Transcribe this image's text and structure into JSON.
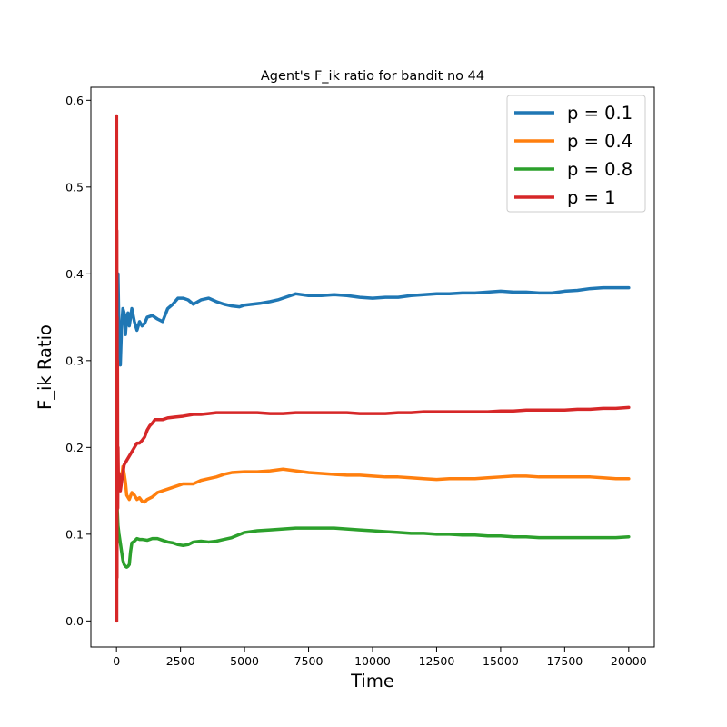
{
  "chart_data": {
    "type": "line",
    "title": "Agent's F_ik ratio for bandit no 44",
    "xlabel": "Time",
    "ylabel": "F_ik Ratio",
    "xlim": [
      -1000,
      21000
    ],
    "ylim": [
      -0.03,
      0.615
    ],
    "xticks": [
      0,
      2500,
      5000,
      7500,
      10000,
      12500,
      15000,
      17500,
      20000
    ],
    "xtick_labels": [
      "0",
      "2500",
      "5000",
      "7500",
      "10000",
      "12500",
      "15000",
      "17500",
      "20000"
    ],
    "yticks": [
      0.0,
      0.1,
      0.2,
      0.3,
      0.4,
      0.5,
      0.6
    ],
    "ytick_labels": [
      "0.0",
      "0.1",
      "0.2",
      "0.3",
      "0.4",
      "0.5",
      "0.6"
    ],
    "grid": false,
    "legend_position": "top-right",
    "series": [
      {
        "name": "p = 0.1",
        "color": "#1f77b4",
        "x": [
          0,
          30,
          60,
          100,
          150,
          200,
          250,
          300,
          350,
          400,
          450,
          500,
          600,
          700,
          800,
          900,
          1000,
          1100,
          1200,
          1400,
          1600,
          1800,
          2000,
          2200,
          2400,
          2600,
          2800,
          3000,
          3300,
          3600,
          3900,
          4200,
          4500,
          4800,
          5000,
          5300,
          5600,
          6000,
          6300,
          6600,
          7000,
          7500,
          8000,
          8500,
          9000,
          9500,
          10000,
          10500,
          11000,
          11500,
          12000,
          12500,
          13000,
          13500,
          14000,
          14500,
          15000,
          15500,
          16000,
          16500,
          17000,
          17500,
          18000,
          18500,
          19000,
          19500,
          20000
        ],
        "y": [
          0.35,
          0.39,
          0.4,
          0.33,
          0.295,
          0.34,
          0.36,
          0.355,
          0.33,
          0.35,
          0.355,
          0.34,
          0.36,
          0.345,
          0.335,
          0.345,
          0.34,
          0.343,
          0.35,
          0.352,
          0.348,
          0.345,
          0.36,
          0.365,
          0.372,
          0.372,
          0.37,
          0.365,
          0.37,
          0.372,
          0.368,
          0.365,
          0.363,
          0.362,
          0.364,
          0.365,
          0.366,
          0.368,
          0.37,
          0.373,
          0.377,
          0.375,
          0.375,
          0.376,
          0.375,
          0.373,
          0.372,
          0.373,
          0.373,
          0.375,
          0.376,
          0.377,
          0.377,
          0.378,
          0.378,
          0.379,
          0.38,
          0.379,
          0.379,
          0.378,
          0.378,
          0.38,
          0.381,
          0.383,
          0.384,
          0.384,
          0.384
        ]
      },
      {
        "name": "p = 0.4",
        "color": "#ff7f0e",
        "x": [
          0,
          30,
          60,
          100,
          150,
          200,
          250,
          300,
          350,
          400,
          500,
          600,
          700,
          800,
          900,
          1000,
          1100,
          1200,
          1400,
          1600,
          1800,
          2000,
          2300,
          2600,
          3000,
          3300,
          3600,
          3900,
          4200,
          4500,
          5000,
          5500,
          6000,
          6500,
          7000,
          7500,
          8000,
          8500,
          9000,
          9500,
          10000,
          10500,
          11000,
          11500,
          12000,
          12500,
          13000,
          13500,
          14000,
          14500,
          15000,
          15500,
          16000,
          16500,
          17000,
          17500,
          18000,
          18500,
          19000,
          19500,
          20000
        ],
        "y": [
          0.1,
          0.14,
          0.16,
          0.17,
          0.155,
          0.165,
          0.178,
          0.17,
          0.16,
          0.145,
          0.14,
          0.148,
          0.145,
          0.14,
          0.142,
          0.138,
          0.137,
          0.14,
          0.143,
          0.148,
          0.15,
          0.152,
          0.155,
          0.158,
          0.158,
          0.162,
          0.164,
          0.166,
          0.169,
          0.171,
          0.172,
          0.172,
          0.173,
          0.175,
          0.173,
          0.171,
          0.17,
          0.169,
          0.168,
          0.168,
          0.167,
          0.166,
          0.166,
          0.165,
          0.164,
          0.163,
          0.164,
          0.164,
          0.164,
          0.165,
          0.166,
          0.167,
          0.167,
          0.166,
          0.166,
          0.166,
          0.166,
          0.166,
          0.165,
          0.164,
          0.164
        ]
      },
      {
        "name": "p = 0.8",
        "color": "#2ca02c",
        "x": [
          0,
          30,
          60,
          100,
          150,
          200,
          250,
          300,
          350,
          400,
          450,
          500,
          550,
          600,
          700,
          800,
          900,
          1000,
          1200,
          1400,
          1600,
          1800,
          2000,
          2200,
          2400,
          2600,
          2800,
          3000,
          3300,
          3600,
          3900,
          4200,
          4500,
          5000,
          5500,
          6000,
          6500,
          7000,
          7500,
          8000,
          8500,
          9000,
          9500,
          10000,
          10500,
          11000,
          11500,
          12000,
          12500,
          13000,
          13500,
          14000,
          14500,
          15000,
          15500,
          16000,
          16500,
          17000,
          17500,
          18000,
          18500,
          19000,
          19500,
          20000
        ],
        "y": [
          0.07,
          0.13,
          0.11,
          0.1,
          0.09,
          0.08,
          0.07,
          0.065,
          0.063,
          0.062,
          0.063,
          0.065,
          0.08,
          0.09,
          0.092,
          0.095,
          0.094,
          0.094,
          0.093,
          0.095,
          0.095,
          0.093,
          0.091,
          0.09,
          0.088,
          0.087,
          0.088,
          0.091,
          0.092,
          0.091,
          0.092,
          0.094,
          0.096,
          0.102,
          0.104,
          0.105,
          0.106,
          0.107,
          0.107,
          0.107,
          0.107,
          0.106,
          0.105,
          0.104,
          0.103,
          0.102,
          0.101,
          0.101,
          0.1,
          0.1,
          0.099,
          0.099,
          0.098,
          0.098,
          0.097,
          0.097,
          0.096,
          0.096,
          0.096,
          0.096,
          0.096,
          0.096,
          0.096,
          0.097
        ]
      },
      {
        "name": "p = 1",
        "color": "#d62728",
        "x": [
          0,
          5,
          10,
          15,
          20,
          25,
          30,
          40,
          50,
          60,
          80,
          100,
          150,
          200,
          300,
          400,
          500,
          600,
          700,
          800,
          900,
          1000,
          1100,
          1200,
          1300,
          1400,
          1500,
          1600,
          1800,
          2000,
          2300,
          2600,
          3000,
          3300,
          3600,
          3900,
          4200,
          4500,
          5000,
          5500,
          6000,
          6500,
          7000,
          7500,
          8000,
          8500,
          9000,
          9500,
          10000,
          10500,
          11000,
          11500,
          12000,
          12500,
          13000,
          13500,
          14000,
          14500,
          15000,
          15500,
          16000,
          16500,
          17000,
          17500,
          18000,
          18500,
          19000,
          19500,
          20000
        ],
        "y": [
          0.0,
          0.582,
          0.0,
          0.45,
          0.05,
          0.35,
          0.15,
          0.3,
          0.13,
          0.2,
          0.15,
          0.17,
          0.15,
          0.16,
          0.18,
          0.185,
          0.19,
          0.195,
          0.2,
          0.205,
          0.205,
          0.208,
          0.212,
          0.22,
          0.225,
          0.228,
          0.232,
          0.232,
          0.232,
          0.234,
          0.235,
          0.236,
          0.238,
          0.238,
          0.239,
          0.24,
          0.24,
          0.24,
          0.24,
          0.24,
          0.239,
          0.239,
          0.24,
          0.24,
          0.24,
          0.24,
          0.24,
          0.239,
          0.239,
          0.239,
          0.24,
          0.24,
          0.241,
          0.241,
          0.241,
          0.241,
          0.241,
          0.241,
          0.242,
          0.242,
          0.243,
          0.243,
          0.243,
          0.243,
          0.244,
          0.244,
          0.245,
          0.245,
          0.246
        ]
      }
    ]
  }
}
